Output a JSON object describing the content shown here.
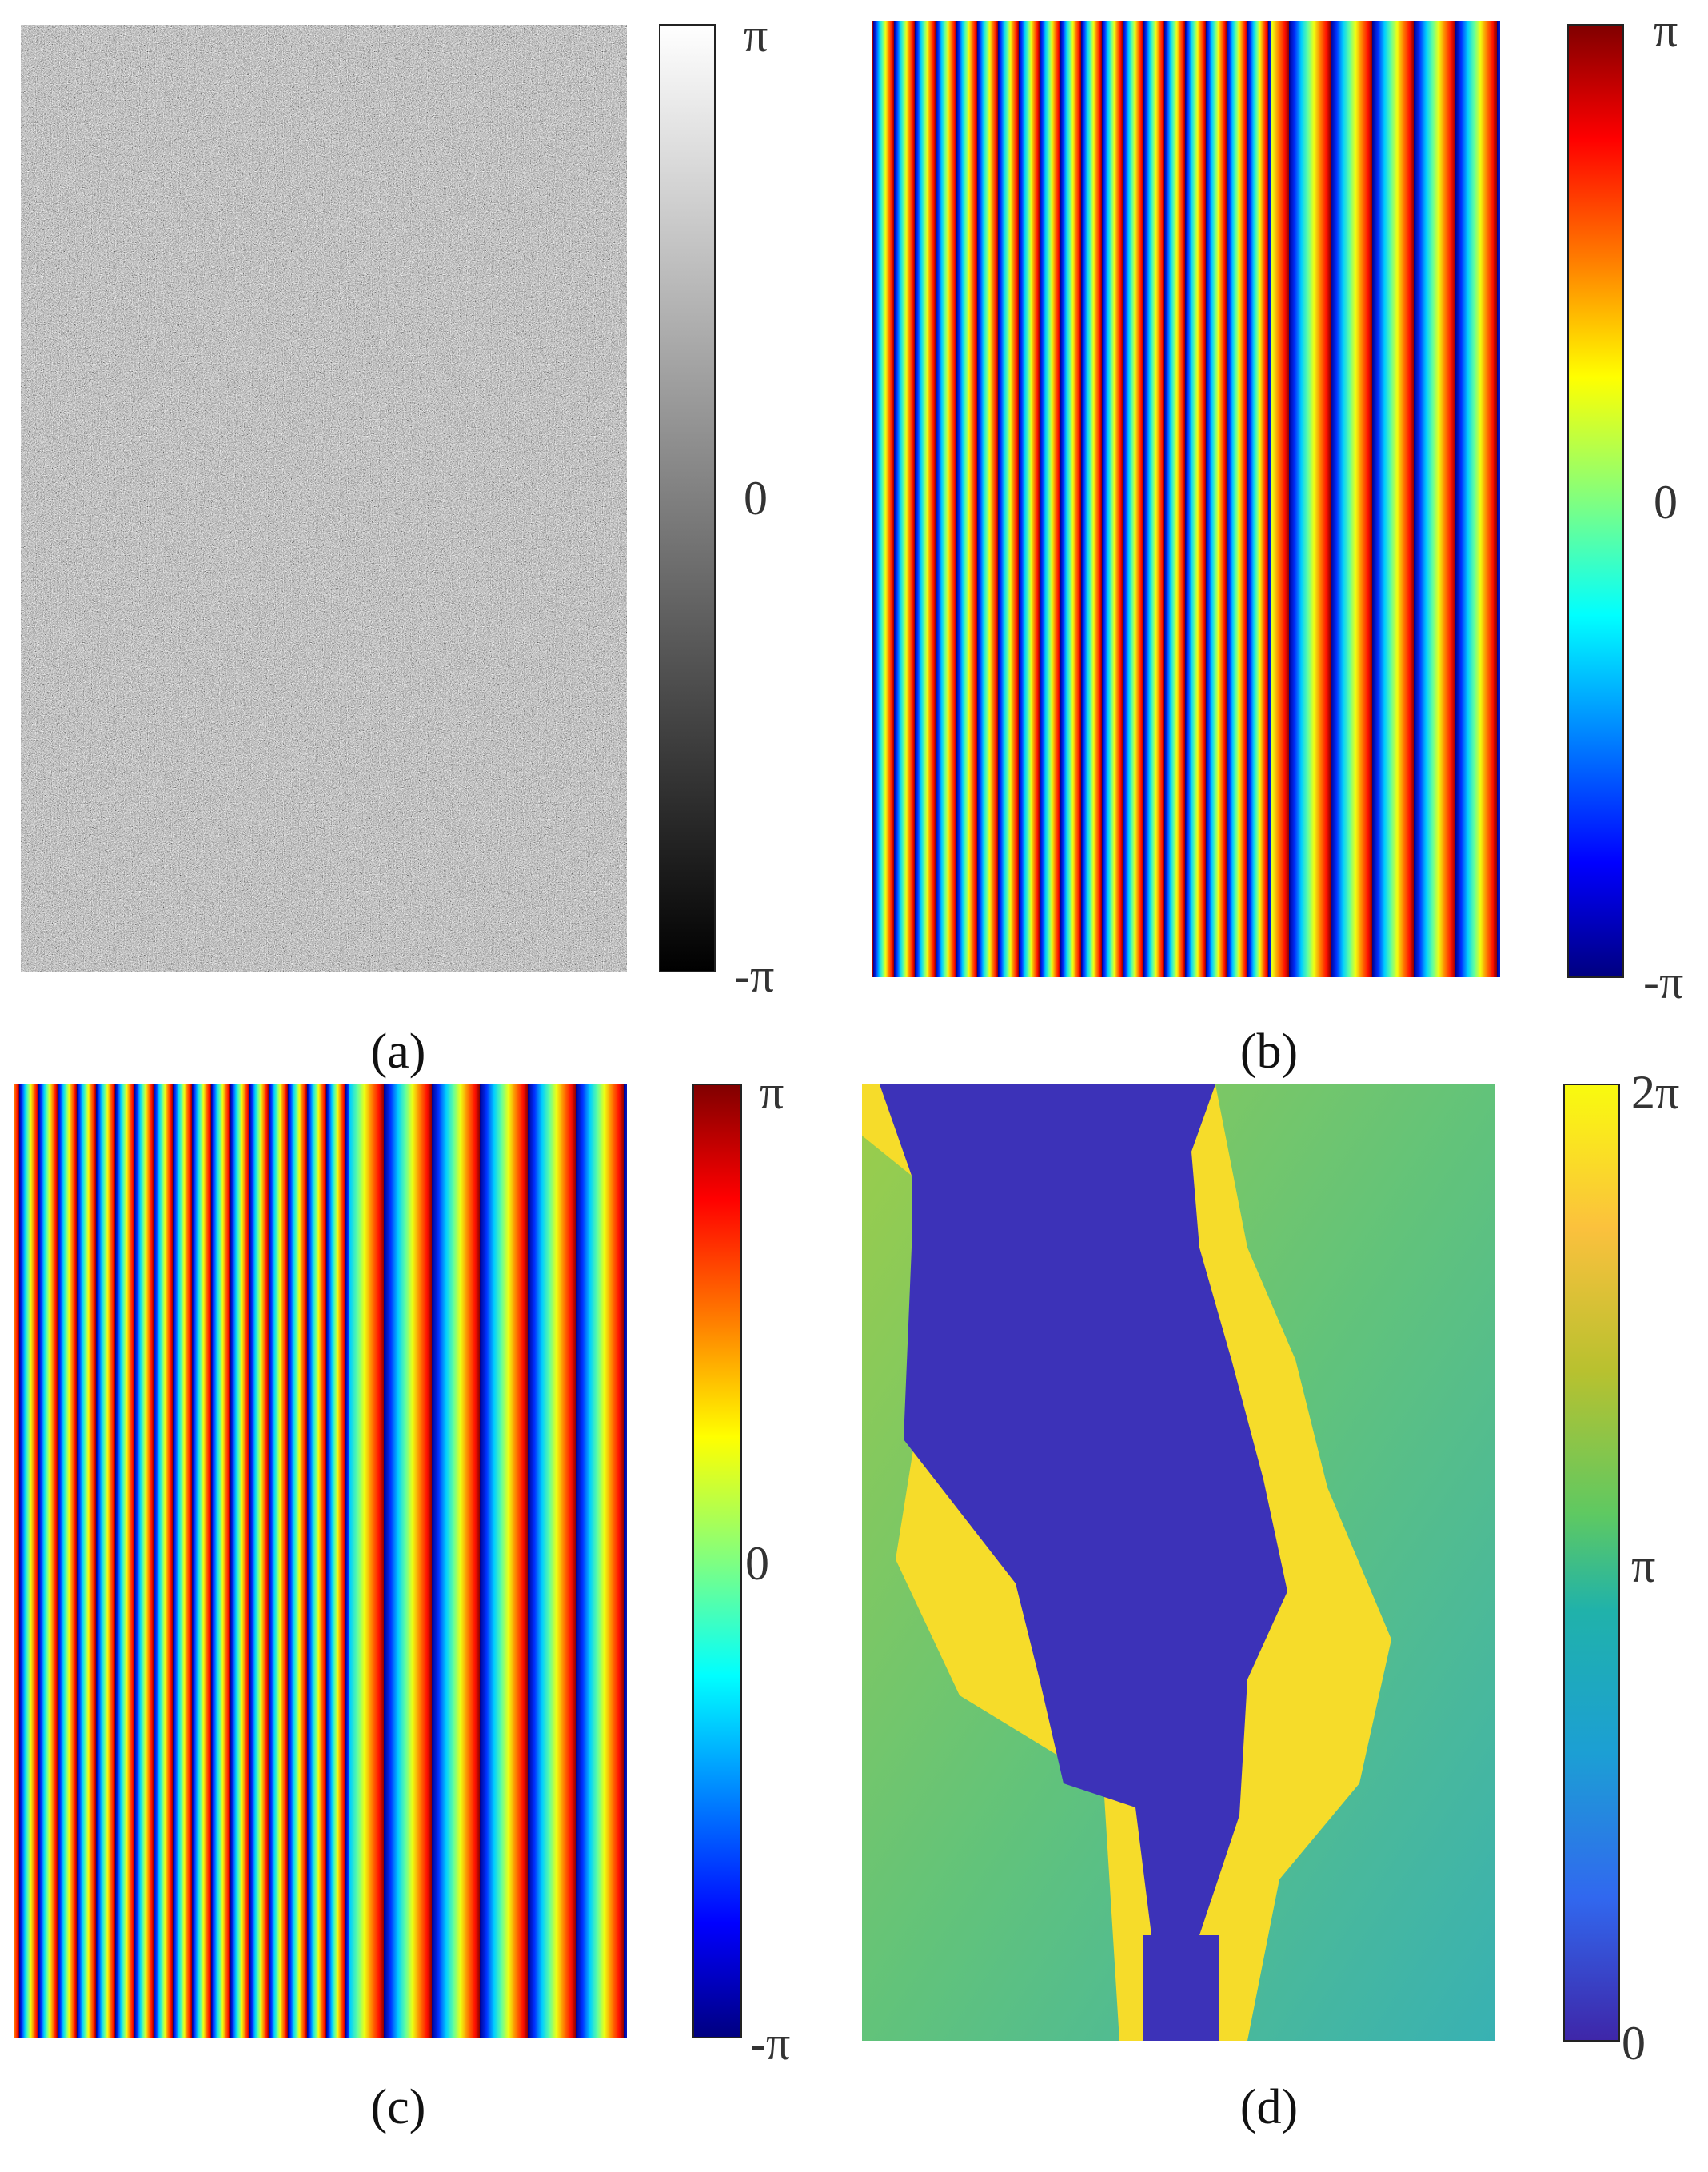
{
  "panels": [
    {
      "label": "(a)",
      "colorbar": {
        "ticks": [
          "π",
          "0",
          "-π"
        ]
      }
    },
    {
      "label": "(b)",
      "colorbar": {
        "ticks": [
          "π",
          "0",
          "-π"
        ]
      }
    },
    {
      "label": "(c)",
      "colorbar": {
        "ticks": [
          "π",
          "0",
          "-π"
        ]
      }
    },
    {
      "label": "(d)",
      "colorbar": {
        "ticks": [
          "2π",
          "π",
          "0"
        ]
      }
    }
  ]
}
